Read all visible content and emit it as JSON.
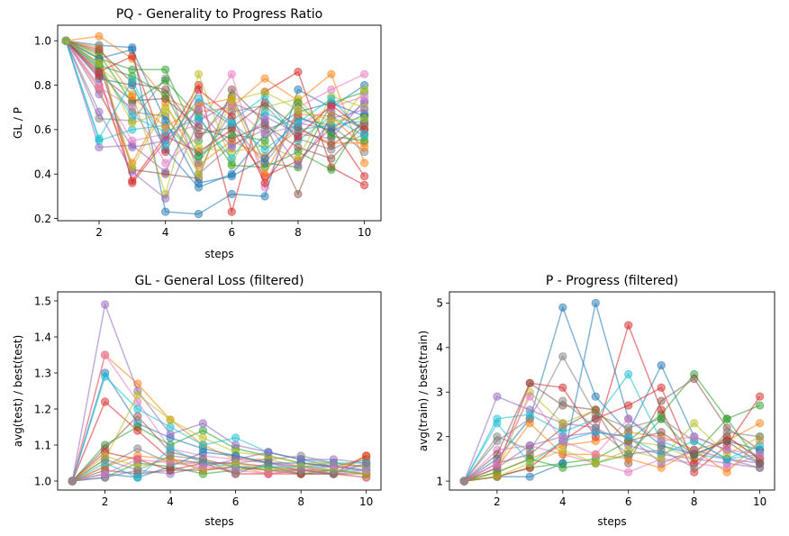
{
  "chart_data": [
    {
      "type": "line",
      "title": "PQ - Generality to Progress Ratio",
      "xlabel": "steps",
      "ylabel": "GL / P",
      "xlim": [
        0.75,
        10.5
      ],
      "ylim": [
        0.19,
        1.07
      ],
      "xticks": [
        2,
        4,
        6,
        8,
        10
      ],
      "yticks": [
        0.2,
        0.4,
        0.6,
        0.8,
        1.0
      ],
      "ytick_labels": [
        "0.2",
        "0.4",
        "0.6",
        "0.8",
        "1.0"
      ],
      "x": [
        1,
        2,
        3,
        4,
        5,
        6,
        7,
        8,
        9,
        10
      ],
      "series": [
        {
          "color": "#1f77b4",
          "values": [
            1.0,
            0.98,
            0.97,
            0.23,
            0.22,
            0.31,
            0.3,
            0.78,
            0.7,
            0.8
          ]
        },
        {
          "color": "#ff7f0e",
          "values": [
            1.0,
            1.02,
            0.92,
            0.74,
            0.68,
            0.7,
            0.83,
            0.73,
            0.85,
            0.45
          ]
        },
        {
          "color": "#2ca02c",
          "values": [
            1.0,
            0.92,
            0.87,
            0.87,
            0.55,
            0.75,
            0.45,
            0.43,
            0.72,
            0.77
          ]
        },
        {
          "color": "#d62728",
          "values": [
            1.0,
            0.95,
            0.36,
            0.55,
            0.8,
            0.23,
            0.77,
            0.86,
            0.43,
            0.35
          ]
        },
        {
          "color": "#9467bd",
          "values": [
            1.0,
            0.52,
            0.53,
            0.41,
            0.72,
            0.62,
            0.45,
            0.63,
            0.6,
            0.72
          ]
        },
        {
          "color": "#8c564b",
          "values": [
            1.0,
            0.9,
            0.42,
            0.4,
            0.38,
            0.78,
            0.63,
            0.31,
            0.68,
            0.6
          ]
        },
        {
          "color": "#e377c2",
          "values": [
            1.0,
            0.8,
            0.55,
            0.58,
            0.62,
            0.85,
            0.34,
            0.7,
            0.78,
            0.85
          ]
        },
        {
          "color": "#7f7f7f",
          "values": [
            1.0,
            0.65,
            0.64,
            0.83,
            0.4,
            0.53,
            0.6,
            0.65,
            0.62,
            0.5
          ]
        },
        {
          "color": "#bcbd22",
          "values": [
            1.0,
            0.88,
            0.76,
            0.31,
            0.85,
            0.45,
            0.7,
            0.74,
            0.58,
            0.78
          ]
        },
        {
          "color": "#17becf",
          "values": [
            1.0,
            0.55,
            0.6,
            0.62,
            0.48,
            0.64,
            0.75,
            0.55,
            0.66,
            0.57
          ]
        },
        {
          "color": "#1f77b4",
          "values": [
            1.0,
            0.83,
            0.8,
            0.51,
            0.34,
            0.4,
            0.58,
            0.68,
            0.72,
            0.66
          ]
        },
        {
          "color": "#ff7f0e",
          "values": [
            1.0,
            0.78,
            0.45,
            0.72,
            0.44,
            0.55,
            0.48,
            0.6,
            0.54,
            0.54
          ]
        },
        {
          "color": "#2ca02c",
          "values": [
            1.0,
            0.94,
            0.72,
            0.82,
            0.66,
            0.44,
            0.43,
            0.5,
            0.42,
            0.66
          ]
        },
        {
          "color": "#d62728",
          "values": [
            1.0,
            0.84,
            0.37,
            0.57,
            0.5,
            0.6,
            0.39,
            0.46,
            0.61,
            0.39
          ]
        },
        {
          "color": "#9467bd",
          "values": [
            1.0,
            0.68,
            0.41,
            0.29,
            0.64,
            0.72,
            0.66,
            0.58,
            0.56,
            0.73
          ]
        },
        {
          "color": "#8c564b",
          "values": [
            1.0,
            0.85,
            0.73,
            0.74,
            0.61,
            0.56,
            0.62,
            0.52,
            0.47,
            0.62
          ]
        },
        {
          "color": "#e377c2",
          "values": [
            1.0,
            0.79,
            0.7,
            0.45,
            0.57,
            0.71,
            0.58,
            0.62,
            0.7,
            0.75
          ]
        },
        {
          "color": "#7f7f7f",
          "values": [
            1.0,
            0.87,
            0.68,
            0.66,
            0.45,
            0.68,
            0.71,
            0.56,
            0.51,
            0.58
          ]
        },
        {
          "color": "#bcbd22",
          "values": [
            1.0,
            0.93,
            0.43,
            0.7,
            0.52,
            0.5,
            0.53,
            0.47,
            0.75,
            0.7
          ]
        },
        {
          "color": "#17becf",
          "values": [
            1.0,
            0.88,
            0.66,
            0.59,
            0.65,
            0.47,
            0.68,
            0.6,
            0.62,
            0.64
          ]
        },
        {
          "color": "#1f77b4",
          "values": [
            1.0,
            0.92,
            0.96,
            0.64,
            0.36,
            0.39,
            0.47,
            0.66,
            0.59,
            0.67
          ]
        },
        {
          "color": "#ff7f0e",
          "values": [
            1.0,
            0.97,
            0.75,
            0.61,
            0.71,
            0.74,
            0.4,
            0.67,
            0.66,
            0.52
          ]
        },
        {
          "color": "#2ca02c",
          "values": [
            1.0,
            0.89,
            0.84,
            0.76,
            0.48,
            0.58,
            0.55,
            0.72,
            0.57,
            0.55
          ]
        },
        {
          "color": "#d62728",
          "values": [
            1.0,
            0.86,
            0.93,
            0.5,
            0.78,
            0.66,
            0.36,
            0.57,
            0.71,
            0.6
          ]
        },
        {
          "color": "#9467bd",
          "values": [
            1.0,
            0.76,
            0.52,
            0.55,
            0.69,
            0.52,
            0.64,
            0.44,
            0.65,
            0.69
          ]
        },
        {
          "color": "#8c564b",
          "values": [
            1.0,
            0.96,
            0.81,
            0.78,
            0.58,
            0.61,
            0.72,
            0.61,
            0.53,
            0.63
          ]
        },
        {
          "color": "#17becf",
          "values": [
            1.0,
            0.56,
            0.82,
            0.53,
            0.74,
            0.63,
            0.51,
            0.63,
            0.74,
            0.58
          ]
        },
        {
          "color": "#bcbd22",
          "values": [
            1.0,
            0.9,
            0.63,
            0.68,
            0.4,
            0.73,
            0.77,
            0.69,
            0.64,
            0.65
          ]
        }
      ]
    },
    {
      "type": "line",
      "title": "GL - General Loss (filtered)",
      "xlabel": "steps",
      "ylabel": "avg(test) / best(test)",
      "xlim": [
        0.55,
        10.45
      ],
      "ylim": [
        0.975,
        1.525
      ],
      "xticks": [
        2,
        4,
        6,
        8,
        10
      ],
      "yticks": [
        1.0,
        1.1,
        1.2,
        1.3,
        1.4,
        1.5
      ],
      "ytick_labels": [
        "1.0",
        "1.1",
        "1.2",
        "1.3",
        "1.4",
        "1.5"
      ],
      "x": [
        1,
        2,
        3,
        4,
        5,
        6,
        7,
        8,
        9,
        10
      ],
      "series": [
        {
          "color": "#1f77b4",
          "values": [
            1.0,
            1.3,
            1.16,
            1.12,
            1.09,
            1.07,
            1.05,
            1.04,
            1.04,
            1.03
          ]
        },
        {
          "color": "#ff7f0e",
          "values": [
            1.0,
            1.35,
            1.27,
            1.17,
            1.1,
            1.06,
            1.06,
            1.04,
            1.05,
            1.04
          ]
        },
        {
          "color": "#2ca02c",
          "values": [
            1.0,
            1.1,
            1.15,
            1.1,
            1.14,
            1.09,
            1.07,
            1.05,
            1.04,
            1.06
          ]
        },
        {
          "color": "#d62728",
          "values": [
            1.0,
            1.22,
            1.14,
            1.06,
            1.05,
            1.05,
            1.04,
            1.03,
            1.02,
            1.01
          ]
        },
        {
          "color": "#9467bd",
          "values": [
            1.0,
            1.49,
            1.25,
            1.13,
            1.16,
            1.1,
            1.08,
            1.06,
            1.04,
            1.04
          ]
        },
        {
          "color": "#8c564b",
          "values": [
            1.0,
            1.09,
            1.18,
            1.08,
            1.06,
            1.04,
            1.03,
            1.03,
            1.03,
            1.02
          ]
        },
        {
          "color": "#e377c2",
          "values": [
            1.0,
            1.35,
            1.22,
            1.09,
            1.07,
            1.06,
            1.05,
            1.04,
            1.02,
            1.03
          ]
        },
        {
          "color": "#7f7f7f",
          "values": [
            1.0,
            1.04,
            1.09,
            1.05,
            1.05,
            1.05,
            1.06,
            1.07,
            1.05,
            1.04
          ]
        },
        {
          "color": "#bcbd22",
          "values": [
            1.0,
            1.06,
            1.24,
            1.17,
            1.12,
            1.08,
            1.07,
            1.05,
            1.05,
            1.04
          ]
        },
        {
          "color": "#17becf",
          "values": [
            1.0,
            1.29,
            1.2,
            1.15,
            1.1,
            1.12,
            1.08,
            1.06,
            1.05,
            1.05
          ]
        },
        {
          "color": "#1f77b4",
          "values": [
            1.0,
            1.02,
            1.01,
            1.04,
            1.08,
            1.07,
            1.05,
            1.05,
            1.04,
            1.03
          ]
        },
        {
          "color": "#ff7f0e",
          "values": [
            1.0,
            1.04,
            1.07,
            1.06,
            1.03,
            1.04,
            1.02,
            1.03,
            1.03,
            1.07
          ]
        },
        {
          "color": "#2ca02c",
          "values": [
            1.0,
            1.01,
            1.05,
            1.04,
            1.02,
            1.03,
            1.04,
            1.02,
            1.03,
            1.02
          ]
        },
        {
          "color": "#d62728",
          "values": [
            1.0,
            1.08,
            1.06,
            1.03,
            1.05,
            1.02,
            1.02,
            1.02,
            1.02,
            1.07
          ]
        },
        {
          "color": "#9467bd",
          "values": [
            1.0,
            1.01,
            1.03,
            1.02,
            1.04,
            1.06,
            1.08,
            1.06,
            1.06,
            1.05
          ]
        },
        {
          "color": "#8c564b",
          "values": [
            1.0,
            1.03,
            1.02,
            1.03,
            1.03,
            1.04,
            1.03,
            1.02,
            1.02,
            1.02
          ]
        },
        {
          "color": "#17becf",
          "values": [
            1.0,
            1.05,
            1.01,
            1.09,
            1.05,
            1.04,
            1.04,
            1.04,
            1.03,
            1.03
          ]
        },
        {
          "color": "#bcbd22",
          "values": [
            1.0,
            1.07,
            1.04,
            1.06,
            1.03,
            1.05,
            1.03,
            1.04,
            1.03,
            1.02
          ]
        },
        {
          "color": "#e377c2",
          "values": [
            1.0,
            1.02,
            1.06,
            1.05,
            1.04,
            1.03,
            1.02,
            1.03,
            1.04,
            1.03
          ]
        },
        {
          "color": "#7f7f7f",
          "values": [
            1.0,
            1.06,
            1.03,
            1.07,
            1.06,
            1.02,
            1.05,
            1.03,
            1.02,
            1.05
          ]
        }
      ]
    },
    {
      "type": "line",
      "title": "P - Progress (filtered)",
      "xlabel": "steps",
      "ylabel": "avg(train) / best(train)",
      "xlim": [
        0.55,
        10.45
      ],
      "ylim": [
        0.8,
        5.25
      ],
      "xticks": [
        2,
        4,
        6,
        8,
        10
      ],
      "yticks": [
        1,
        2,
        3,
        4,
        5
      ],
      "ytick_labels": [
        "1",
        "2",
        "3",
        "4",
        "5"
      ],
      "x": [
        1,
        2,
        3,
        4,
        5,
        6,
        7,
        8,
        9,
        10
      ],
      "series": [
        {
          "color": "#1f77b4",
          "values": [
            1.0,
            1.5,
            2.4,
            4.9,
            2.9,
            2.1,
            3.6,
            2.0,
            1.7,
            1.4
          ]
        },
        {
          "color": "#ff7f0e",
          "values": [
            1.0,
            1.2,
            1.5,
            1.8,
            1.9,
            2.1,
            2.0,
            1.7,
            1.9,
            2.3
          ]
        },
        {
          "color": "#2ca02c",
          "values": [
            1.0,
            1.1,
            1.3,
            1.4,
            1.5,
            1.9,
            2.5,
            3.4,
            2.4,
            2.7
          ]
        },
        {
          "color": "#d62728",
          "values": [
            1.0,
            1.3,
            3.2,
            3.1,
            2.0,
            4.5,
            2.6,
            1.2,
            1.8,
            2.9
          ]
        },
        {
          "color": "#9467bd",
          "values": [
            1.0,
            2.9,
            2.6,
            2.3,
            2.2,
            1.8,
            1.6,
            1.5,
            1.4,
            1.3
          ]
        },
        {
          "color": "#8c564b",
          "values": [
            1.0,
            1.4,
            1.6,
            2.2,
            2.6,
            1.4,
            2.8,
            3.3,
            2.2,
            1.7
          ]
        },
        {
          "color": "#e377c2",
          "values": [
            1.0,
            1.7,
            1.8,
            1.6,
            1.4,
            1.2,
            1.5,
            1.4,
            1.3,
            1.6
          ]
        },
        {
          "color": "#7f7f7f",
          "values": [
            1.0,
            1.9,
            2.4,
            3.8,
            2.5,
            2.2,
            2.4,
            1.9,
            1.5,
            1.3
          ]
        },
        {
          "color": "#bcbd22",
          "values": [
            1.0,
            1.2,
            3.0,
            2.3,
            2.6,
            1.9,
            1.8,
            1.5,
            2.0,
            1.5
          ]
        },
        {
          "color": "#17becf",
          "values": [
            1.0,
            2.4,
            2.5,
            2.1,
            2.4,
            3.4,
            1.9,
            1.6,
            1.5,
            1.6
          ]
        },
        {
          "color": "#1f77b4",
          "values": [
            1.0,
            1.1,
            1.1,
            1.4,
            5.0,
            2.4,
            1.8,
            1.6,
            1.9,
            1.7
          ]
        },
        {
          "color": "#ff7f0e",
          "values": [
            1.0,
            1.3,
            2.3,
            1.6,
            1.6,
            1.5,
            1.3,
            1.7,
            1.2,
            1.9
          ]
        },
        {
          "color": "#2ca02c",
          "values": [
            1.0,
            1.2,
            1.5,
            1.3,
            1.4,
            1.6,
            2.4,
            1.6,
            2.4,
            1.4
          ]
        },
        {
          "color": "#d62728",
          "values": [
            1.0,
            1.1,
            1.3,
            1.9,
            2.4,
            2.7,
            3.1,
            1.4,
            2.0,
            1.5
          ]
        },
        {
          "color": "#9467bd",
          "values": [
            1.0,
            1.3,
            1.8,
            2.0,
            2.1,
            2.0,
            1.4,
            1.7,
            1.5,
            1.4
          ]
        },
        {
          "color": "#8c564b",
          "values": [
            1.0,
            1.6,
            3.2,
            2.7,
            2.6,
            1.9,
            2.1,
            1.6,
            1.9,
            1.4
          ]
        },
        {
          "color": "#17becf",
          "values": [
            1.0,
            2.3,
            1.4,
            1.9,
            2.1,
            2.0,
            1.6,
            1.9,
            1.5,
            1.8
          ]
        },
        {
          "color": "#bcbd22",
          "values": [
            1.0,
            1.1,
            1.4,
            1.7,
            1.4,
            1.7,
            1.5,
            2.3,
            1.6,
            2.0
          ]
        },
        {
          "color": "#e377c2",
          "values": [
            1.0,
            1.4,
            2.9,
            1.9,
            1.6,
            2.4,
            1.9,
            2.0,
            1.7,
            1.6
          ]
        },
        {
          "color": "#7f7f7f",
          "values": [
            1.0,
            2.0,
            1.7,
            2.8,
            2.2,
            1.6,
            1.7,
            1.3,
            2.1,
            2.0
          ]
        }
      ]
    }
  ]
}
